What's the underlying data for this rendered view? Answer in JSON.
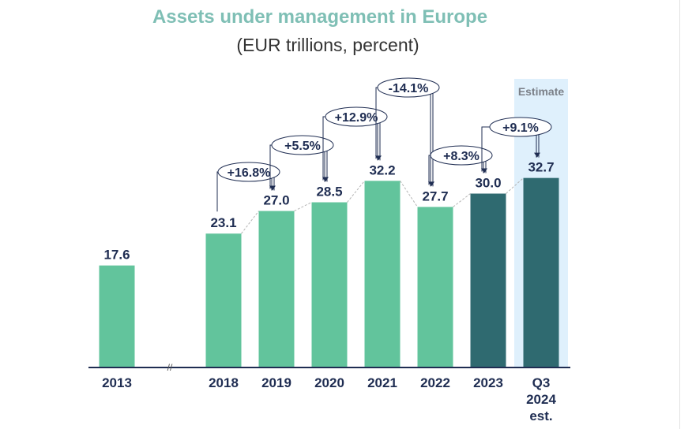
{
  "colors": {
    "title": "#7fbfb5",
    "bar_actual": "#62c49c",
    "bar_dark": "#2f6a70",
    "estimate_band": "#dff0fc",
    "text": "#1f2d52"
  },
  "chart_data": {
    "type": "bar",
    "title": "Assets under management in Europe",
    "subtitle": "(EUR trillions, percent)",
    "categories": [
      "2013",
      "2018",
      "2019",
      "2020",
      "2021",
      "2022",
      "2023",
      "Q3\n2024\nest."
    ],
    "values": [
      17.6,
      23.1,
      27.0,
      28.5,
      32.2,
      27.7,
      30.0,
      32.7
    ],
    "value_labels": [
      "17.6",
      "23.1",
      "27.0",
      "28.5",
      "32.2",
      "27.7",
      "30.0",
      "32.7"
    ],
    "bar_colors": [
      "#62c49c",
      "#62c49c",
      "#62c49c",
      "#62c49c",
      "#62c49c",
      "#62c49c",
      "#2f6a70",
      "#2f6a70"
    ],
    "ylim": [
      0,
      36
    ],
    "axis_break_symbol": "//",
    "annotations": [
      {
        "text": "+16.8%",
        "from": 1,
        "to": 2
      },
      {
        "text": "+5.5%",
        "from": 2,
        "to": 3
      },
      {
        "text": "+12.9%",
        "from": 3,
        "to": 4
      },
      {
        "text": "-14.1%",
        "from": 4,
        "to": 5
      },
      {
        "text": "+8.3%",
        "from": 5,
        "to": 6
      },
      {
        "text": "+9.1%",
        "from": 6,
        "to": 7
      }
    ],
    "shaded_region": {
      "label": "Estimate",
      "category_index": 7
    }
  }
}
